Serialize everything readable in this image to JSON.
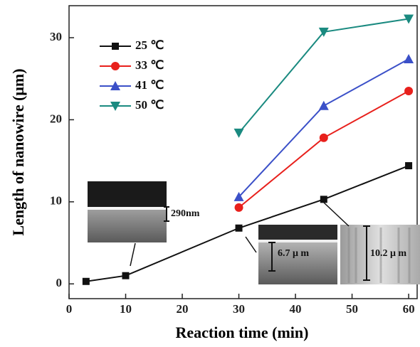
{
  "chart_data": {
    "type": "line",
    "xlabel": "Reaction time (min)",
    "ylabel": "Length of nanowire (μm)",
    "x": [
      3,
      10,
      30,
      45,
      60
    ],
    "series": [
      {
        "name": "25 ℃",
        "color": "#111111",
        "marker": "square",
        "values": [
          0.3,
          1.0,
          6.8,
          10.3,
          14.4
        ]
      },
      {
        "name": "33 ℃",
        "color": "#e8201c",
        "marker": "circle",
        "values": [
          null,
          null,
          9.3,
          17.8,
          23.5
        ]
      },
      {
        "name": "41 ℃",
        "color": "#3b50c8",
        "marker": "triangle-up",
        "values": [
          null,
          null,
          10.6,
          21.7,
          27.4
        ]
      },
      {
        "name": "50 ℃",
        "color": "#1a8a80",
        "marker": "triangle-down",
        "values": [
          null,
          null,
          18.4,
          30.7,
          32.3
        ]
      }
    ],
    "xlim": [
      0,
      61.5
    ],
    "ylim": [
      -1.8,
      33.9
    ],
    "xticks": [
      0,
      10,
      20,
      30,
      40,
      50,
      60
    ],
    "yticks": [
      0,
      10,
      20,
      30
    ],
    "annotations": [
      {
        "text": "290nm"
      },
      {
        "text": "6.7 μ m"
      },
      {
        "text": "10.2 μ m"
      }
    ]
  }
}
